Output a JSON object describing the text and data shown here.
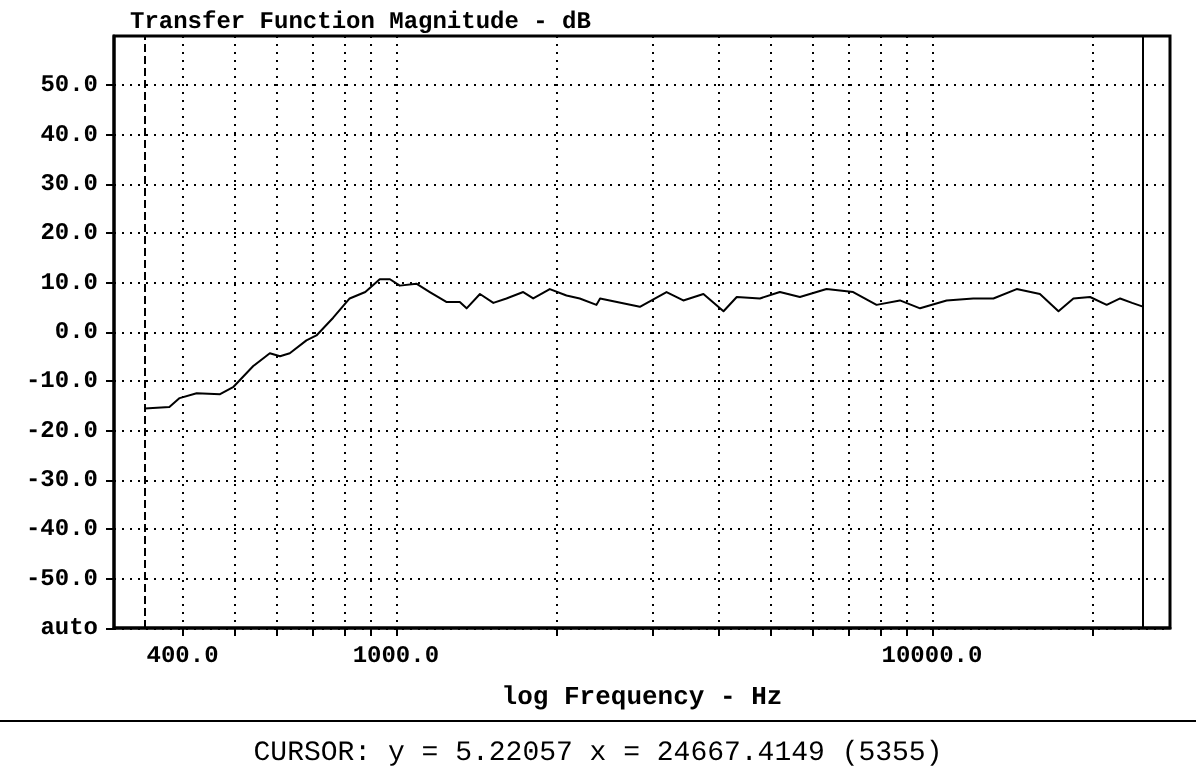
{
  "chart_data": {
    "type": "line",
    "title": "Transfer Function Magnitude - dB",
    "xlabel": "log Frequency - Hz",
    "log": "x",
    "grid": true,
    "marker": "none",
    "line_style": "solid",
    "xlim": [
      298,
      27800
    ],
    "ylim": [
      -60,
      60
    ],
    "xticks": [
      {
        "value": 400,
        "label": "400.0"
      },
      {
        "value": 500,
        "label": null
      },
      {
        "value": 600,
        "label": null
      },
      {
        "value": 700,
        "label": null
      },
      {
        "value": 800,
        "label": null
      },
      {
        "value": 900,
        "label": null
      },
      {
        "value": 1000,
        "label": "1000.0"
      },
      {
        "value": 2000,
        "label": null
      },
      {
        "value": 3000,
        "label": null
      },
      {
        "value": 4000,
        "label": null
      },
      {
        "value": 5000,
        "label": null
      },
      {
        "value": 6000,
        "label": null
      },
      {
        "value": 7000,
        "label": null
      },
      {
        "value": 8000,
        "label": null
      },
      {
        "value": 9000,
        "label": null
      },
      {
        "value": 10000,
        "label": "10000.0"
      },
      {
        "value": 20000,
        "label": null
      }
    ],
    "yticks": [
      {
        "value": -60,
        "label": "auto"
      },
      {
        "value": -50,
        "label": "-50.0"
      },
      {
        "value": -40,
        "label": "-40.0"
      },
      {
        "value": -30,
        "label": "-30.0"
      },
      {
        "value": -20,
        "label": "-20.0"
      },
      {
        "value": -10,
        "label": "-10.0"
      },
      {
        "value": 0,
        "label": "0.0"
      },
      {
        "value": 10,
        "label": "10.0"
      },
      {
        "value": 20,
        "label": "20.0"
      },
      {
        "value": 30,
        "label": "30.0"
      },
      {
        "value": 40,
        "label": "40.0"
      },
      {
        "value": 50,
        "label": "50.0"
      }
    ],
    "ref_lines": [
      {
        "axis": "x",
        "value": 339,
        "line_style": "dashed"
      },
      {
        "axis": "x",
        "value": 24667,
        "line_style": "solid"
      }
    ],
    "annotations": [
      "CURSOR: y = 5.22057 x = 24667.4149 (5355)"
    ],
    "series": [
      {
        "color": "#000000",
        "x": [
          340,
          378,
          395,
          425,
          470,
          498,
          542,
          582,
          608,
          634,
          681,
          711,
          764,
          820,
          877,
          933,
          975,
          1017,
          1092,
          1157,
          1242,
          1316,
          1355,
          1435,
          1520,
          1608,
          1728,
          1804,
          1937,
          2081,
          2203,
          2367,
          2404,
          2852,
          3198,
          3437,
          3747,
          4085,
          4324,
          4776,
          5203,
          5671,
          6359,
          7129,
          7882,
          8714,
          9502,
          10650,
          11940,
          13020,
          14390,
          15900,
          17220,
          18360,
          19720,
          21180,
          22440,
          23620,
          24667
        ],
        "values": [
          -15.5,
          -15.2,
          -13.4,
          -12.4,
          -12.6,
          -11.1,
          -6.9,
          -4.3,
          -4.9,
          -4.3,
          -1.7,
          -0.7,
          2.9,
          6.8,
          8.1,
          10.7,
          10.7,
          9.4,
          9.8,
          8.1,
          6.1,
          6.1,
          4.8,
          7.7,
          5.9,
          6.8,
          8.1,
          6.8,
          8.7,
          7.4,
          6.8,
          5.5,
          6.8,
          5.1,
          8.1,
          6.4,
          7.7,
          4.2,
          7.1,
          6.8,
          8.1,
          7.1,
          8.7,
          8.1,
          5.5,
          6.4,
          4.8,
          6.4,
          6.8,
          6.8,
          8.7,
          7.7,
          4.2,
          6.8,
          7.1,
          5.5,
          6.8,
          5.9,
          5.2
        ]
      }
    ]
  }
}
